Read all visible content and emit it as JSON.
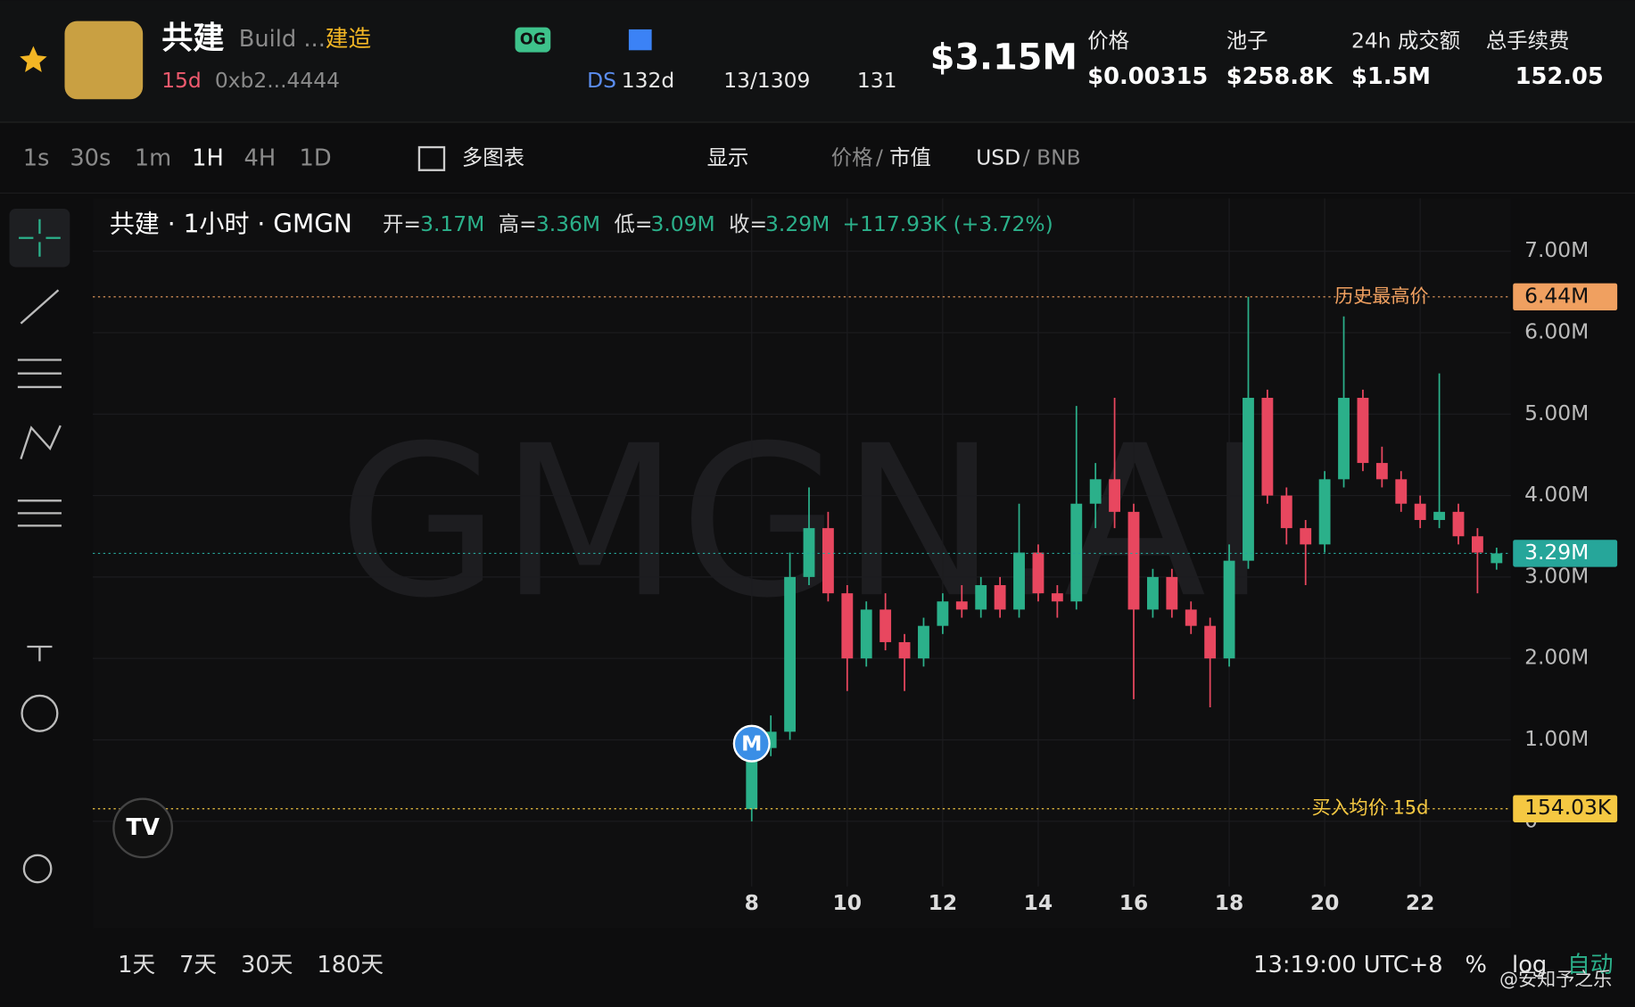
{
  "header": {
    "symbol": "共建",
    "name": "Build ...",
    "alias": "建造",
    "age": "15d",
    "address": "0xb2...4444",
    "badge": "OG",
    "ds": "DS",
    "ds_age": "132d",
    "holders": "13/1309",
    "views": "131",
    "market_cap": "$3.15M",
    "stats": [
      {
        "label": "价格",
        "value": "$0.00315"
      },
      {
        "label": "池子",
        "value": "$258.8K"
      },
      {
        "label": "24h 成交额",
        "value": "$1.5M"
      },
      {
        "label": "总手续费",
        "value": "152.05"
      }
    ]
  },
  "toolbar": {
    "intervals": [
      "1s",
      "30s",
      "1m",
      "1H",
      "4H",
      "1D"
    ],
    "multi_chart": "多图表",
    "display": "显示",
    "price": "价格",
    "slash": "/",
    "mcap": "市值",
    "usd": "USD",
    "bnb": "/ BNB"
  },
  "legend": {
    "title": "共建 · 1小时 · GMGN",
    "open_label": "开=",
    "open": "3.17M",
    "high_label": "高=",
    "high": "3.36M",
    "low_label": "低=",
    "low": "3.09M",
    "close_label": "收=",
    "close": "3.29M",
    "change": "+117.93K (+3.72%)"
  },
  "watermark": "GMGN.AI",
  "chart_data": {
    "type": "candlestick",
    "up_color": "#2bb08a",
    "down_color": "#e8475f",
    "grid": true,
    "x": [
      8.0,
      8.4,
      8.8,
      9.2,
      9.6,
      10.0,
      10.4,
      10.8,
      11.2,
      11.6,
      12.0,
      12.4,
      12.8,
      13.2,
      13.6,
      14.0,
      14.4,
      14.8,
      15.2,
      15.6,
      16.0,
      16.4,
      16.8,
      17.2,
      17.6,
      18.0,
      18.4,
      18.8,
      19.2,
      19.6,
      20.0,
      20.4,
      20.8,
      21.2,
      21.6,
      22.0,
      22.4,
      22.8,
      23.2,
      23.6
    ],
    "open": [
      0.15,
      0.9,
      1.1,
      3.0,
      3.6,
      2.8,
      2.0,
      2.6,
      2.2,
      2.0,
      2.4,
      2.7,
      2.6,
      2.9,
      2.6,
      3.3,
      2.8,
      2.7,
      3.9,
      4.2,
      3.8,
      2.6,
      3.0,
      2.6,
      2.4,
      2.0,
      3.2,
      5.2,
      4.0,
      3.6,
      3.4,
      4.2,
      5.2,
      4.4,
      4.2,
      3.9,
      3.7,
      3.8,
      3.5,
      3.17
    ],
    "high": [
      1.0,
      1.3,
      3.3,
      4.1,
      3.8,
      2.9,
      2.7,
      2.8,
      2.3,
      2.5,
      2.8,
      2.9,
      3.0,
      3.0,
      3.9,
      3.4,
      2.9,
      5.1,
      4.4,
      5.2,
      3.9,
      3.1,
      3.1,
      2.7,
      2.5,
      3.4,
      6.44,
      5.3,
      4.1,
      3.7,
      4.3,
      6.2,
      5.3,
      4.6,
      4.3,
      4.0,
      5.5,
      3.9,
      3.6,
      3.36
    ],
    "low": [
      0.0,
      0.8,
      1.0,
      2.9,
      2.7,
      1.6,
      1.9,
      2.1,
      1.6,
      1.9,
      2.3,
      2.5,
      2.5,
      2.5,
      2.5,
      2.7,
      2.5,
      2.6,
      3.6,
      3.6,
      1.5,
      2.5,
      2.5,
      2.3,
      1.4,
      1.9,
      3.1,
      3.9,
      3.4,
      2.9,
      3.3,
      4.1,
      4.3,
      4.1,
      3.8,
      3.6,
      3.6,
      3.4,
      2.8,
      3.09
    ],
    "close": [
      0.9,
      1.1,
      3.0,
      3.6,
      2.8,
      2.0,
      2.6,
      2.2,
      2.0,
      2.4,
      2.7,
      2.6,
      2.9,
      2.6,
      3.3,
      2.8,
      2.7,
      3.9,
      4.2,
      3.8,
      2.6,
      3.0,
      2.6,
      2.4,
      2.0,
      3.2,
      5.2,
      4.0,
      3.6,
      3.4,
      4.2,
      5.2,
      4.4,
      4.2,
      3.9,
      3.7,
      3.8,
      3.5,
      3.3,
      3.29
    ],
    "xlim": [
      -5.8,
      23.9
    ],
    "xticks": [
      8,
      10,
      12,
      14,
      16,
      18,
      20,
      22
    ],
    "ylim": [
      -0.8,
      7.65
    ],
    "yticks": [
      0,
      {
        "value": 1,
        "label": "1.00M"
      },
      {
        "value": 2,
        "label": "2.00M"
      },
      {
        "value": 3,
        "label": "3.00M"
      },
      {
        "value": 4,
        "label": "4.00M"
      },
      {
        "value": 5,
        "label": "5.00M"
      },
      {
        "value": 6,
        "label": "6.00M"
      },
      {
        "value": 7,
        "label": "7.00M"
      }
    ],
    "reference_lines": [
      {
        "value": 6.44,
        "value_label": "6.44M",
        "label": "历史最高价",
        "color": "#f0a060"
      },
      {
        "value": 3.29,
        "value_label": "3.29M",
        "color": "#26a69a"
      },
      {
        "value": 0.15403,
        "value_label": "154.03K",
        "label": "买入均价 15d",
        "color": "#f5c842"
      }
    ],
    "marker": "M"
  },
  "footer": {
    "ranges": [
      "1天",
      "7天",
      "30天",
      "180天"
    ],
    "time": "13:19:00 UTC+8",
    "pct": "%",
    "log": "log",
    "auto": "自动",
    "credit": "@安知予之乐"
  }
}
